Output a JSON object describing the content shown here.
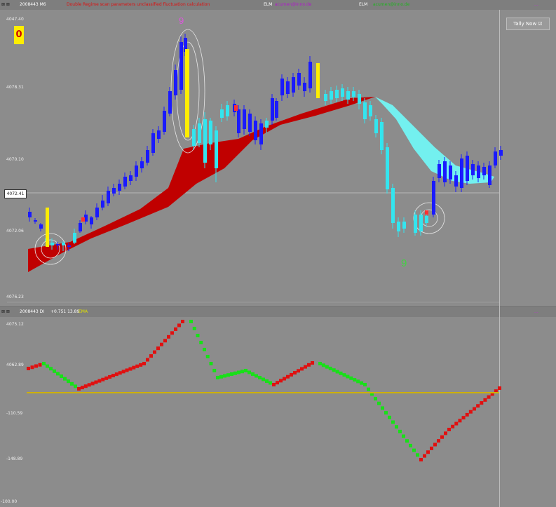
{
  "top_panel": {
    "header_id": "2008443 M6",
    "header_red_text": "Double Regime scan parameters unclassified fluctuation calculation",
    "header_tag1": "ELM",
    "header_value1": "acumen@inno.de",
    "header_tag2": "ELM",
    "header_value2": "acumen@inno.de",
    "header_right": "...",
    "price_ticks": [
      "4047.40",
      "4078.31",
      "4070.10",
      "4072.06",
      "4076.23"
    ],
    "current_price": "4072.41",
    "badge_value": "0",
    "tally_button": "Tally Now ☑",
    "count_label_top": "9",
    "count_label_bottom": "9"
  },
  "bottom_panel": {
    "header_id": "2008443 DI",
    "header_values": "+0.751 13.89",
    "header_tag": "EMA",
    "header_right": "...",
    "osc_ticks": [
      "4075.12",
      "4062.89",
      "-110.59",
      "-148.89"
    ],
    "bottom_label": "-100.00"
  },
  "colors": {
    "background": "#8c8c8c",
    "bull_candle": "#1a1aff",
    "bear_candle": "#33e5ef",
    "band_up": "#c00000",
    "band_down": "#73f0ef",
    "highlight": "#ffee00",
    "osc_up": "#e01010",
    "osc_down": "#18e018",
    "zero_line": "#cdb000"
  }
}
